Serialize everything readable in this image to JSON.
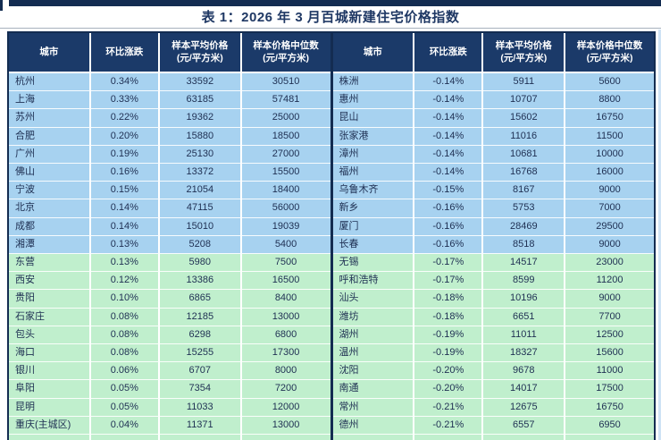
{
  "title": "表 1：2026 年 3 月百城新建住宅价格指数",
  "columns": [
    {
      "label": "城市"
    },
    {
      "label": "环比涨跌"
    },
    {
      "label": "样本平均价格\n(元/平方米)"
    },
    {
      "label": "样本价格中位数\n(元/平方米)"
    }
  ],
  "left_table": {
    "rows": [
      {
        "city": "杭州",
        "change": "0.34%",
        "avg": "33592",
        "median": "30510",
        "tone": "blue"
      },
      {
        "city": "上海",
        "change": "0.33%",
        "avg": "63185",
        "median": "57481",
        "tone": "blue"
      },
      {
        "city": "苏州",
        "change": "0.22%",
        "avg": "19362",
        "median": "25000",
        "tone": "blue"
      },
      {
        "city": "合肥",
        "change": "0.20%",
        "avg": "15880",
        "median": "18500",
        "tone": "blue"
      },
      {
        "city": "广州",
        "change": "0.19%",
        "avg": "25130",
        "median": "27000",
        "tone": "blue"
      },
      {
        "city": "佛山",
        "change": "0.16%",
        "avg": "13372",
        "median": "15500",
        "tone": "blue"
      },
      {
        "city": "宁波",
        "change": "0.15%",
        "avg": "21054",
        "median": "18400",
        "tone": "blue"
      },
      {
        "city": "北京",
        "change": "0.14%",
        "avg": "47115",
        "median": "56000",
        "tone": "blue"
      },
      {
        "city": "成都",
        "change": "0.14%",
        "avg": "15010",
        "median": "19039",
        "tone": "blue"
      },
      {
        "city": "湘潭",
        "change": "0.13%",
        "avg": "5208",
        "median": "5400",
        "tone": "blue"
      },
      {
        "city": "东营",
        "change": "0.13%",
        "avg": "5980",
        "median": "7500",
        "tone": "green"
      },
      {
        "city": "西安",
        "change": "0.12%",
        "avg": "13386",
        "median": "16500",
        "tone": "green"
      },
      {
        "city": "贵阳",
        "change": "0.10%",
        "avg": "6865",
        "median": "8400",
        "tone": "green"
      },
      {
        "city": "石家庄",
        "change": "0.08%",
        "avg": "12185",
        "median": "13000",
        "tone": "green"
      },
      {
        "city": "包头",
        "change": "0.08%",
        "avg": "6298",
        "median": "6800",
        "tone": "green"
      },
      {
        "city": "海口",
        "change": "0.08%",
        "avg": "15255",
        "median": "17300",
        "tone": "green"
      },
      {
        "city": "银川",
        "change": "0.06%",
        "avg": "6707",
        "median": "8000",
        "tone": "green"
      },
      {
        "city": "阜阳",
        "change": "0.05%",
        "avg": "7354",
        "median": "7200",
        "tone": "green"
      },
      {
        "city": "昆明",
        "change": "0.05%",
        "avg": "11033",
        "median": "12000",
        "tone": "green"
      },
      {
        "city": "重庆(主城区)",
        "change": "0.04%",
        "avg": "11371",
        "median": "13000",
        "tone": "green"
      }
    ]
  },
  "right_table": {
    "rows": [
      {
        "city": "株洲",
        "change": "-0.14%",
        "avg": "5911",
        "median": "5600",
        "tone": "blue"
      },
      {
        "city": "惠州",
        "change": "-0.14%",
        "avg": "10707",
        "median": "8800",
        "tone": "blue"
      },
      {
        "city": "昆山",
        "change": "-0.14%",
        "avg": "15602",
        "median": "16750",
        "tone": "blue"
      },
      {
        "city": "张家港",
        "change": "-0.14%",
        "avg": "11016",
        "median": "11500",
        "tone": "blue"
      },
      {
        "city": "漳州",
        "change": "-0.14%",
        "avg": "10681",
        "median": "10000",
        "tone": "blue"
      },
      {
        "city": "福州",
        "change": "-0.14%",
        "avg": "16768",
        "median": "16000",
        "tone": "blue"
      },
      {
        "city": "乌鲁木齐",
        "change": "-0.15%",
        "avg": "8167",
        "median": "9000",
        "tone": "blue"
      },
      {
        "city": "新乡",
        "change": "-0.16%",
        "avg": "5753",
        "median": "7000",
        "tone": "blue"
      },
      {
        "city": "厦门",
        "change": "-0.16%",
        "avg": "28469",
        "median": "29500",
        "tone": "blue"
      },
      {
        "city": "长春",
        "change": "-0.16%",
        "avg": "8518",
        "median": "9000",
        "tone": "blue"
      },
      {
        "city": "无锡",
        "change": "-0.17%",
        "avg": "14517",
        "median": "23000",
        "tone": "green"
      },
      {
        "city": "呼和浩特",
        "change": "-0.17%",
        "avg": "8599",
        "median": "11200",
        "tone": "green"
      },
      {
        "city": "汕头",
        "change": "-0.18%",
        "avg": "10196",
        "median": "9000",
        "tone": "green"
      },
      {
        "city": "潍坊",
        "change": "-0.18%",
        "avg": "6651",
        "median": "7700",
        "tone": "green"
      },
      {
        "city": "湖州",
        "change": "-0.19%",
        "avg": "11011",
        "median": "12500",
        "tone": "green"
      },
      {
        "city": "温州",
        "change": "-0.19%",
        "avg": "18327",
        "median": "15600",
        "tone": "green"
      },
      {
        "city": "沈阳",
        "change": "-0.20%",
        "avg": "9678",
        "median": "11000",
        "tone": "green"
      },
      {
        "city": "南通",
        "change": "-0.20%",
        "avg": "14017",
        "median": "17500",
        "tone": "green"
      },
      {
        "city": "常州",
        "change": "-0.21%",
        "avg": "12675",
        "median": "16750",
        "tone": "green"
      },
      {
        "city": "德州",
        "change": "-0.21%",
        "avg": "6557",
        "median": "6950",
        "tone": "green"
      }
    ]
  },
  "colors": {
    "header_bg": "#1B3A69",
    "row_blue": "#A7D2F0",
    "row_green": "#C0EFCD",
    "border_navy": "#132C51",
    "title_text": "#1F3864",
    "cell_text": "#1E2F52",
    "header_text": "#FFFFFF",
    "edge_strip_blue": "#CFE3F5"
  }
}
